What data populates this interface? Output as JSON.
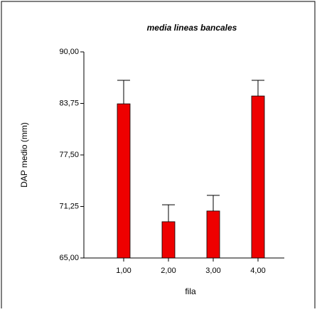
{
  "chart_data": {
    "type": "bar",
    "title": "media lineas bancales",
    "x_label": "fila",
    "y_label": "DAP medio (mm)",
    "categories": [
      "1,00",
      "2,00",
      "3,00",
      "4,00"
    ],
    "values": [
      83.7,
      69.4,
      70.7,
      84.65
    ],
    "errors": [
      2.85,
      2.05,
      1.9,
      1.9
    ],
    "color": "#ee0000",
    "ylim": [
      65,
      90
    ],
    "yticks": [
      {
        "value": 65,
        "label": "65,00"
      },
      {
        "value": 71.25,
        "label": "71,25"
      },
      {
        "value": 77.5,
        "label": "77,50"
      },
      {
        "value": 83.75,
        "label": "83,75"
      },
      {
        "value": 90,
        "label": "90,00"
      }
    ]
  }
}
